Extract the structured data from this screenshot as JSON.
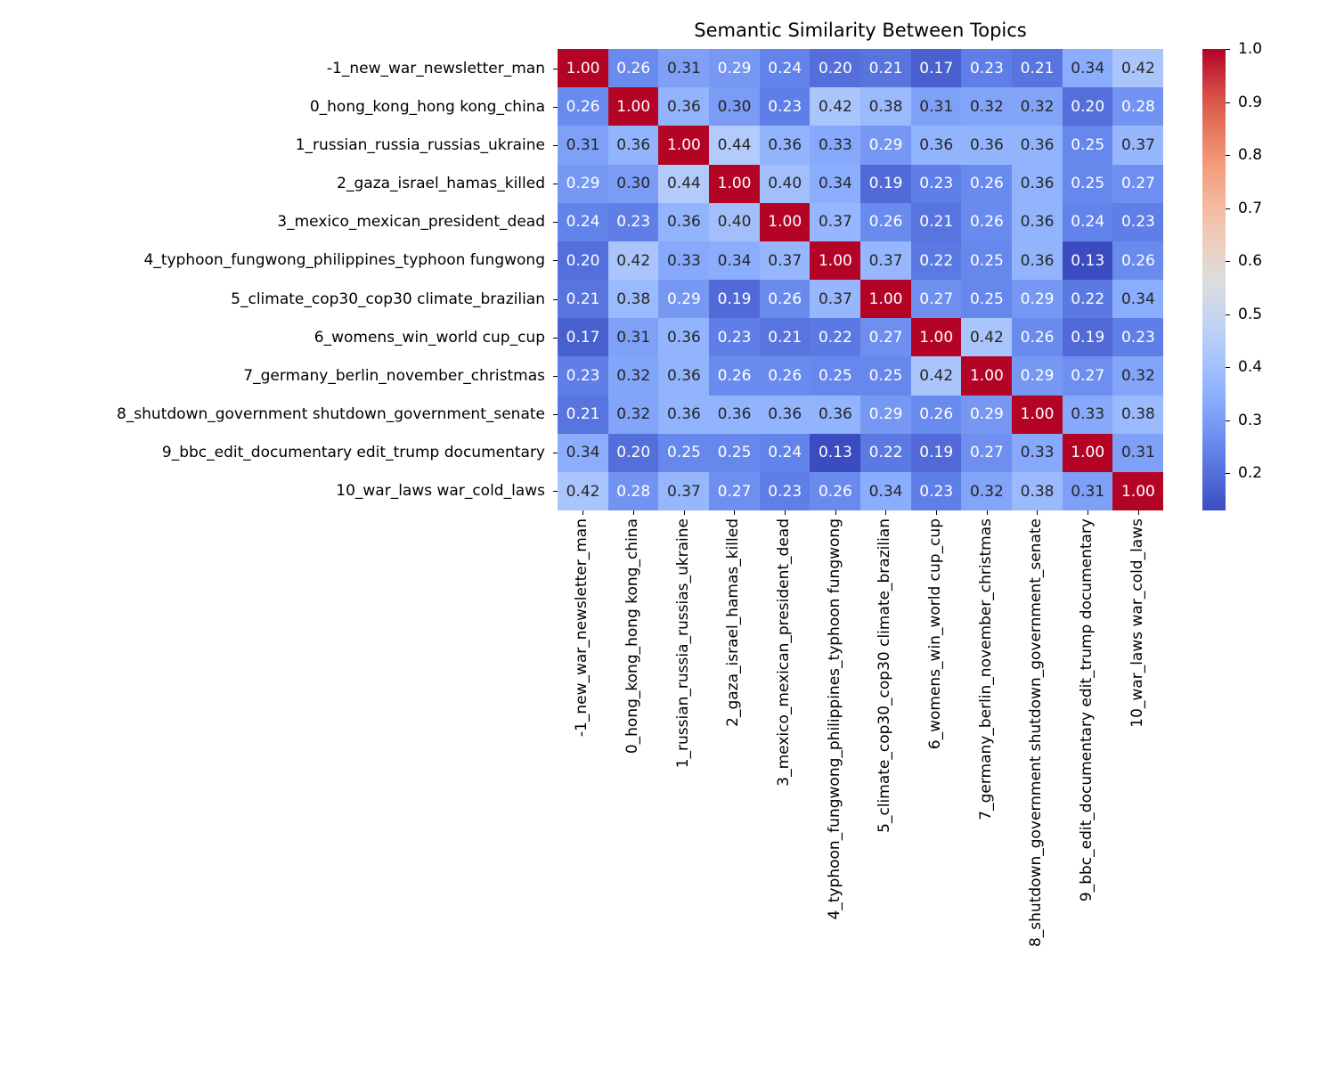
{
  "chart_data": {
    "type": "heatmap",
    "title": "Semantic Similarity Between Topics",
    "xlabel": "",
    "ylabel": "",
    "colormap": "coolwarm",
    "value_format": "0.00",
    "colorbar": {
      "min": 0.13,
      "max": 1.0,
      "ticks": [
        1.0,
        0.9,
        0.8,
        0.7,
        0.6,
        0.5,
        0.4,
        0.3,
        0.2
      ],
      "tick_labels": [
        "1.0",
        "0.9",
        "0.8",
        "0.7",
        "0.6",
        "0.5",
        "0.4",
        "0.3",
        "0.2"
      ]
    },
    "labels": [
      "-1_new_war_newsletter_man",
      "0_hong_kong_hong kong_china",
      "1_russian_russia_russias_ukraine",
      "2_gaza_israel_hamas_killed",
      "3_mexico_mexican_president_dead",
      "4_typhoon_fungwong_philippines_typhoon fungwong",
      "5_climate_cop30_cop30 climate_brazilian",
      "6_womens_win_world cup_cup",
      "7_germany_berlin_november_christmas",
      "8_shutdown_government shutdown_government_senate",
      "9_bbc_edit_documentary edit_trump documentary",
      "10_war_laws war_cold_laws"
    ],
    "matrix": [
      [
        1.0,
        0.26,
        0.31,
        0.29,
        0.24,
        0.2,
        0.21,
        0.17,
        0.23,
        0.21,
        0.34,
        0.42
      ],
      [
        0.26,
        1.0,
        0.36,
        0.3,
        0.23,
        0.42,
        0.38,
        0.31,
        0.32,
        0.32,
        0.2,
        0.28
      ],
      [
        0.31,
        0.36,
        1.0,
        0.44,
        0.36,
        0.33,
        0.29,
        0.36,
        0.36,
        0.36,
        0.25,
        0.37
      ],
      [
        0.29,
        0.3,
        0.44,
        1.0,
        0.4,
        0.34,
        0.19,
        0.23,
        0.26,
        0.36,
        0.25,
        0.27
      ],
      [
        0.24,
        0.23,
        0.36,
        0.4,
        1.0,
        0.37,
        0.26,
        0.21,
        0.26,
        0.36,
        0.24,
        0.23
      ],
      [
        0.2,
        0.42,
        0.33,
        0.34,
        0.37,
        1.0,
        0.37,
        0.22,
        0.25,
        0.36,
        0.13,
        0.26
      ],
      [
        0.21,
        0.38,
        0.29,
        0.19,
        0.26,
        0.37,
        1.0,
        0.27,
        0.25,
        0.29,
        0.22,
        0.34
      ],
      [
        0.17,
        0.31,
        0.36,
        0.23,
        0.21,
        0.22,
        0.27,
        1.0,
        0.42,
        0.26,
        0.19,
        0.23
      ],
      [
        0.23,
        0.32,
        0.36,
        0.26,
        0.26,
        0.25,
        0.25,
        0.42,
        1.0,
        0.29,
        0.27,
        0.32
      ],
      [
        0.21,
        0.32,
        0.36,
        0.36,
        0.36,
        0.36,
        0.29,
        0.26,
        0.29,
        1.0,
        0.33,
        0.38
      ],
      [
        0.34,
        0.2,
        0.25,
        0.25,
        0.24,
        0.13,
        0.22,
        0.19,
        0.27,
        0.33,
        1.0,
        0.31
      ],
      [
        0.42,
        0.28,
        0.37,
        0.27,
        0.23,
        0.26,
        0.34,
        0.23,
        0.32,
        0.38,
        0.31,
        1.0
      ]
    ]
  }
}
